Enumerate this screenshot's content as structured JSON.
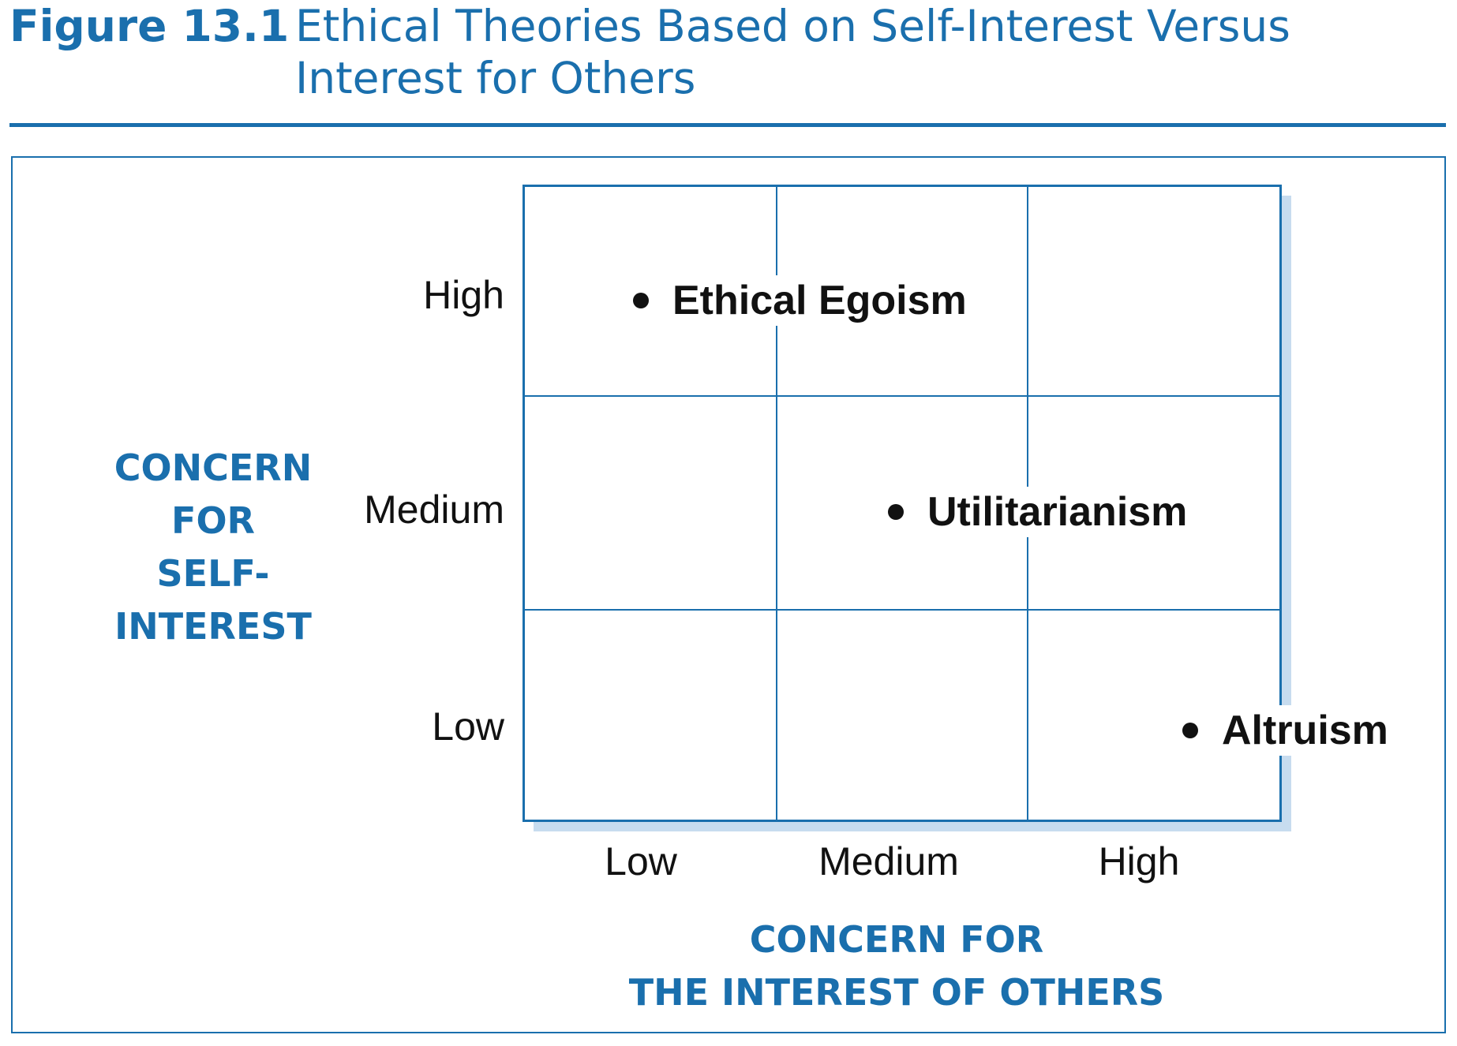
{
  "figure": {
    "number": "Figure 13.1",
    "title": "Ethical Theories Based on Self-Interest Versus Interest for Others"
  },
  "axes": {
    "y_title": [
      "CONCERN",
      "FOR",
      "SELF-INTEREST"
    ],
    "x_title": [
      "CONCERN FOR",
      "THE INTEREST OF OTHERS"
    ],
    "y_levels": [
      "High",
      "Medium",
      "Low"
    ],
    "x_levels": [
      "Low",
      "Medium",
      "High"
    ]
  },
  "theories": [
    {
      "label": "Ethical Egoism",
      "self_interest": "High",
      "others_interest": "Low–Medium"
    },
    {
      "label": "Utilitarianism",
      "self_interest": "Medium",
      "others_interest": "Medium–High"
    },
    {
      "label": "Altruism",
      "self_interest": "Low",
      "others_interest": "High"
    }
  ],
  "colors": {
    "accent": "#1a6fad",
    "shadow": "#c7dcef",
    "text": "#111111"
  }
}
